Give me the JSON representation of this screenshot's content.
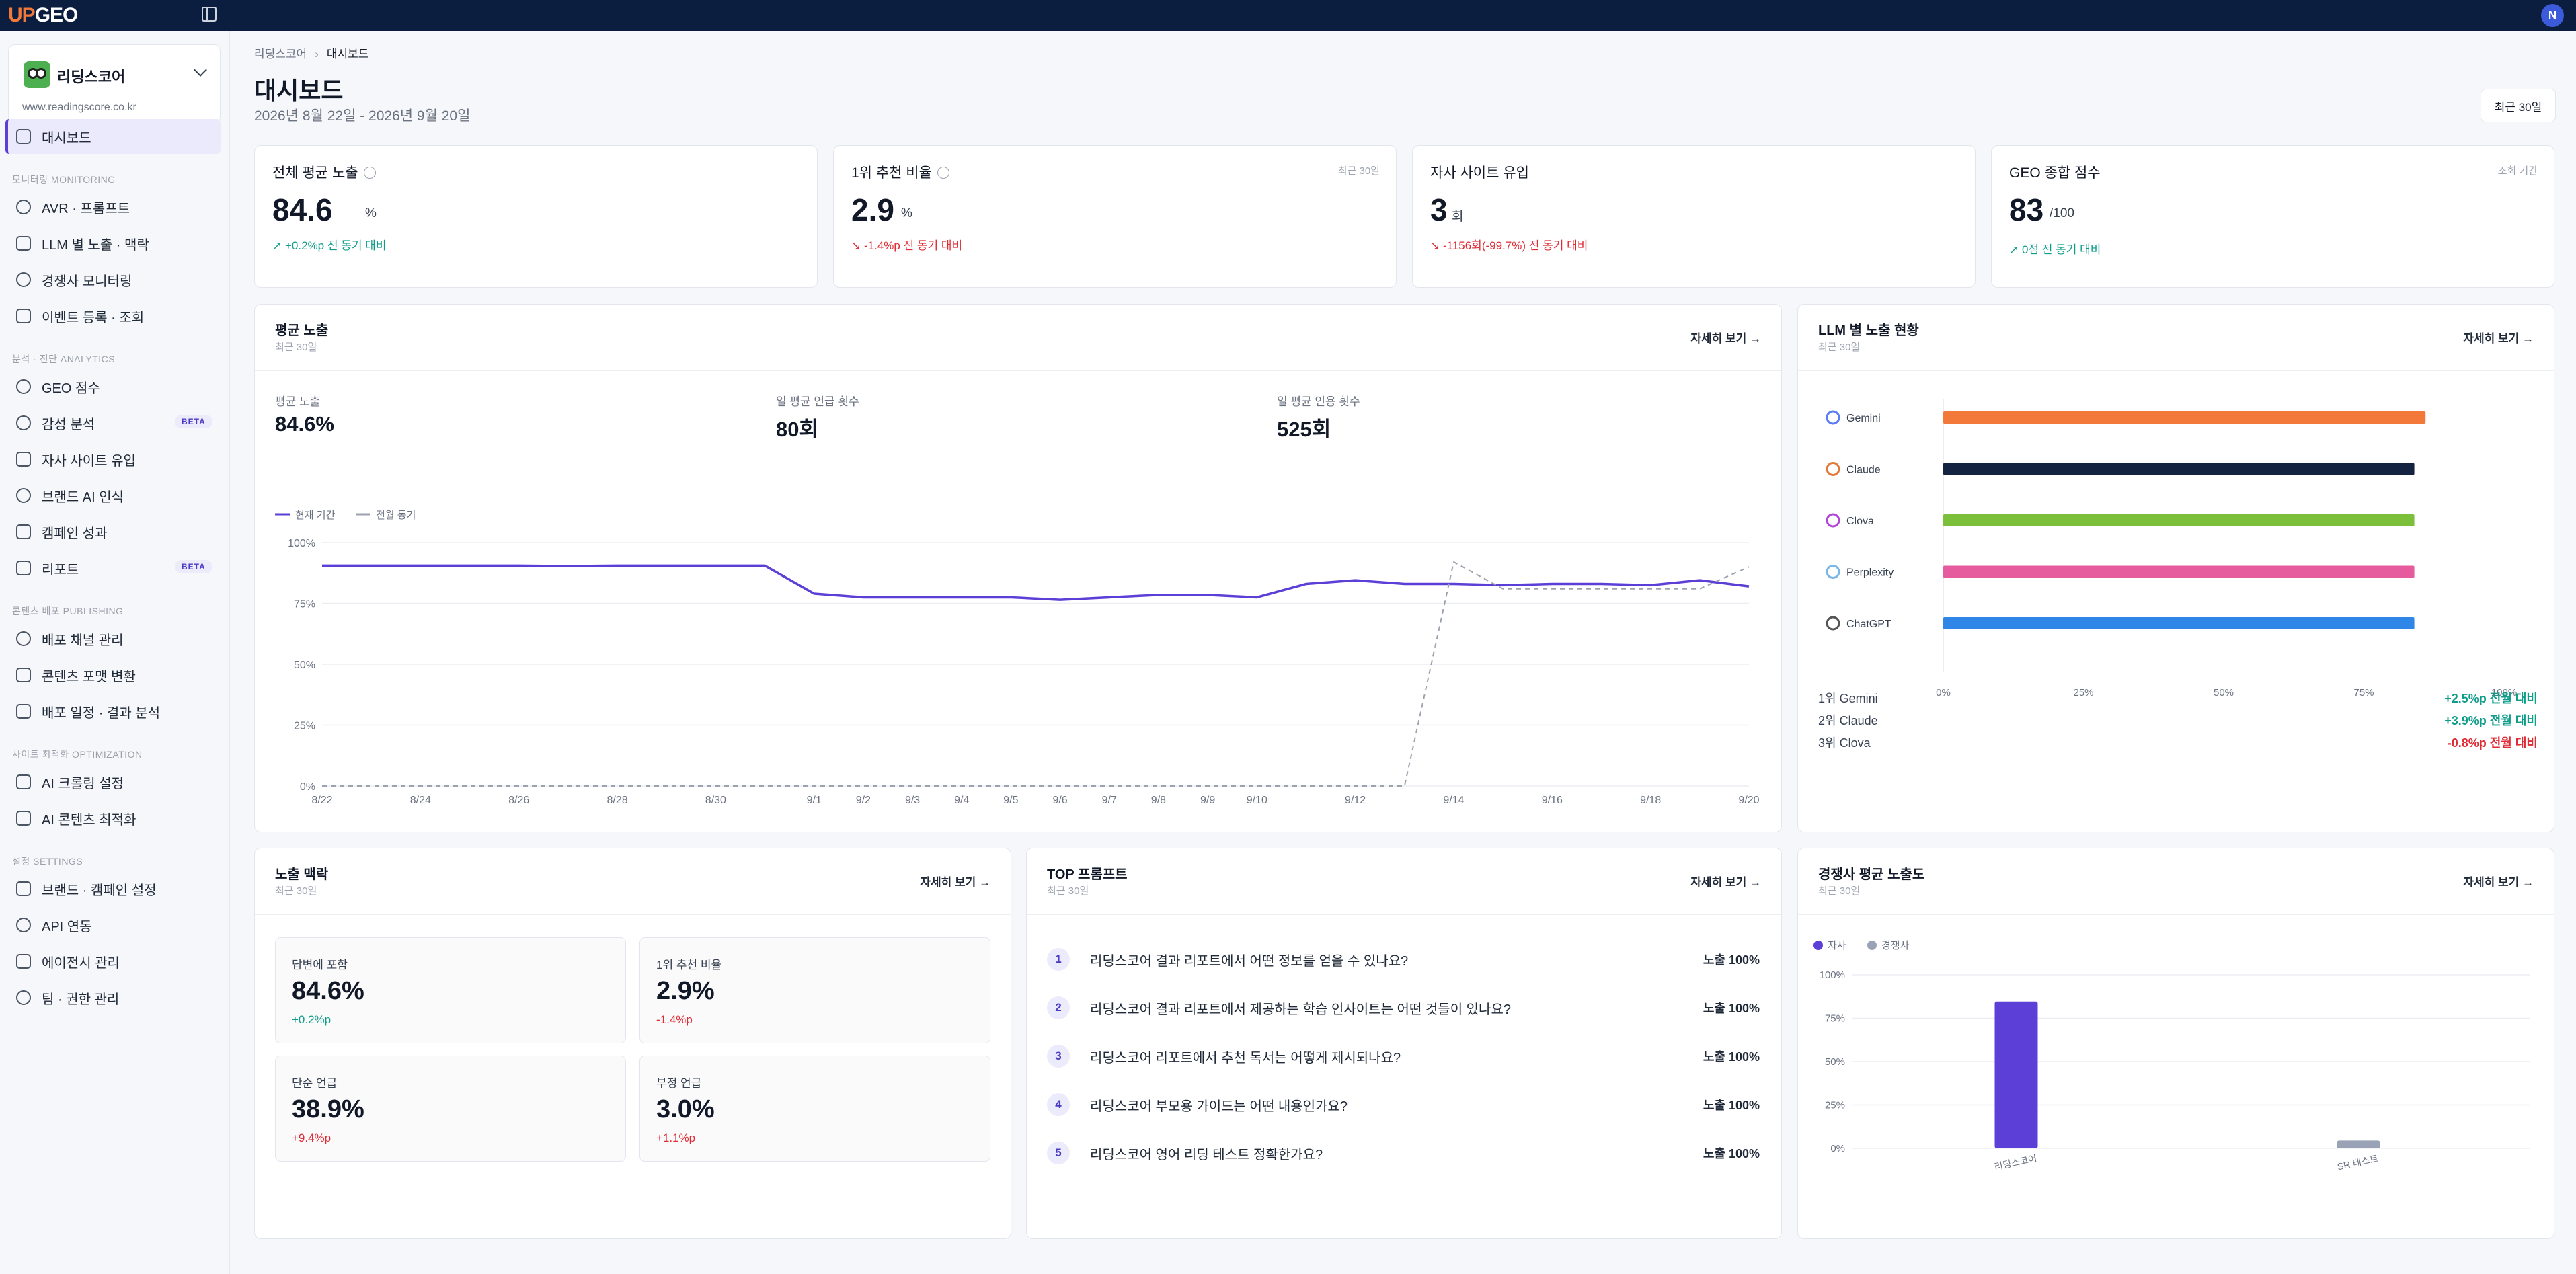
{
  "app": {
    "logo_up": "UP",
    "logo_geo": "GEO",
    "avatar": "N"
  },
  "sidebar": {
    "site_name": "리딩스코어",
    "site_url": "www.readingscore.co.kr",
    "sections": {
      "monitoring": "모니터링 MONITORING",
      "analytics": "분석 · 진단 ANALYTICS",
      "publishing": "콘텐츠 배포 PUBLISHING",
      "optimization": "사이트 최적화 OPTIMIZATION",
      "settings": "설정 SETTINGS"
    },
    "items": [
      "대시보드",
      "AVR · 프롬프트",
      "LLM 별 노출 · 맥락",
      "경쟁사 모니터링",
      "이벤트 등록 · 조회",
      "GEO 점수",
      "감성 분석",
      "자사 사이트 유입",
      "브랜드 AI 인식",
      "캠페인 성과",
      "리포트",
      "배포 채널 관리",
      "콘텐츠 포맷 변환",
      "배포 일정 · 결과 분석",
      "AI 크롤링 설정",
      "AI 콘텐츠 최적화",
      "브랜드 · 캠페인 설정",
      "API 연동",
      "에이전시 관리",
      "팀 · 권한 관리"
    ],
    "badge": "BETA"
  },
  "header": {
    "crumb_root": "리딩스코어",
    "crumb_current": "대시보드",
    "title": "대시보드",
    "daterange": "2026년 8월 22일 - 2026년 9월 20일",
    "period": "최근 30일"
  },
  "kpis": [
    {
      "label": "전체 평균 노출",
      "sub": "",
      "value": "84.6",
      "unit": "%",
      "change": "↗ +0.2%p 전 동기 대비",
      "dir": "up"
    },
    {
      "label": "1위 추천 비율",
      "sub": "최근 30일",
      "value": "2.9",
      "unit": "%",
      "change": "↘ -1.4%p 전 동기 대비",
      "dir": "down"
    },
    {
      "label": "자사 사이트 유입",
      "sub": "",
      "value": "3",
      "unit": "회",
      "change": "↘ -1156회(-99.7%) 전 동기 대비",
      "dir": "down"
    },
    {
      "label": "GEO 종합 점수",
      "sub": "조회 기간",
      "value": "83",
      "unit": "/100",
      "change": "↗ 0점 전 동기 대비",
      "dir": "up"
    }
  ],
  "exposure": {
    "title": "평균 노출",
    "sub": "최근 30일",
    "more": "자세히 보기 →",
    "metrics": [
      {
        "label": "평균 노출",
        "value": "84.6%"
      },
      {
        "label": "일 평균 언급 횟수",
        "value": "80회"
      },
      {
        "label": "일 평균 인용 횟수",
        "value": "525회"
      }
    ]
  },
  "llm": {
    "title": "LLM 별 노출 현황",
    "sub": "최근 30일",
    "more": "자세히 보기 →",
    "ranks": [
      {
        "label": "1위 Gemini",
        "change": "+2.5%p 전월 대비",
        "dir": "up"
      },
      {
        "label": "2위 Claude",
        "change": "+3.9%p 전월 대비",
        "dir": "up"
      },
      {
        "label": "3위 Clova",
        "change": "-0.8%p 전월 대비",
        "dir": "down"
      }
    ]
  },
  "context": {
    "title": "노출 맥락",
    "sub": "최근 30일",
    "more": "자세히 보기 →",
    "cells": [
      {
        "label": "답변에 포함",
        "value": "84.6%",
        "change": "+0.2%p",
        "dir": "up"
      },
      {
        "label": "1위 추천 비율",
        "value": "2.9%",
        "change": "-1.4%p",
        "dir": "down"
      },
      {
        "label": "단순 언급",
        "value": "38.9%",
        "change": "+9.4%p",
        "dir": "down"
      },
      {
        "label": "부정 언급",
        "value": "3.0%",
        "change": "+1.1%p",
        "dir": "down"
      }
    ]
  },
  "prompts": {
    "title": "TOP 프롬프트",
    "sub": "최근 30일",
    "more": "자세히 보기 →",
    "items": [
      {
        "n": "1",
        "q": "리딩스코어 결과 리포트에서 어떤 정보를 얻을 수 있나요?",
        "e": "노출 100%"
      },
      {
        "n": "2",
        "q": "리딩스코어 결과 리포트에서 제공하는 학습 인사이트는 어떤 것들이 있나요?",
        "e": "노출 100%"
      },
      {
        "n": "3",
        "q": "리딩스코어 리포트에서 추천 독서는 어떻게 제시되나요?",
        "e": "노출 100%"
      },
      {
        "n": "4",
        "q": "리딩스코어 부모용 가이드는 어떤 내용인가요?",
        "e": "노출 100%"
      },
      {
        "n": "5",
        "q": "리딩스코어 영어 리딩 테스트 정확한가요?",
        "e": "노출 100%"
      }
    ]
  },
  "competitor": {
    "title": "경쟁사 평균 노출도",
    "sub": "최근 30일",
    "more": "자세히 보기 →"
  },
  "chart_data": [
    {
      "type": "line",
      "legend": [
        "현재 기간",
        "전월 동기"
      ],
      "x": [
        "8/22",
        "8/23",
        "8/24",
        "8/25",
        "8/26",
        "8/27",
        "8/28",
        "8/29",
        "8/30",
        "8/31",
        "9/1",
        "9/2",
        "9/3",
        "9/4",
        "9/5",
        "9/6",
        "9/7",
        "9/8",
        "9/9",
        "9/10",
        "9/11",
        "9/12",
        "9/13",
        "9/14",
        "9/15",
        "9/16",
        "9/17",
        "9/18",
        "9/19",
        "9/20"
      ],
      "xticks": [
        "8/22",
        "8/24",
        "8/26",
        "8/28",
        "8/30",
        "9/1",
        "9/2",
        "9/3",
        "9/4",
        "9/5",
        "9/6",
        "9/7",
        "9/8",
        "9/9",
        "9/10",
        "9/12",
        "9/14",
        "9/16",
        "9/18",
        "9/20"
      ],
      "yticks": [
        "0%",
        "25%",
        "50%",
        "75%",
        "100%"
      ],
      "ylim": [
        0,
        100
      ],
      "series": [
        {
          "name": "현재 기간",
          "color": "#5b3fd6",
          "values": [
            90.5,
            90.5,
            90.5,
            90.5,
            90.5,
            90.3,
            90.5,
            90.5,
            90.5,
            90.5,
            79,
            77.5,
            77.5,
            77.5,
            77.5,
            76.5,
            77.5,
            78.5,
            78.5,
            77.5,
            83,
            84.5,
            83,
            83,
            82.5,
            83,
            83,
            82.5,
            84.5,
            82
          ]
        },
        {
          "name": "전월 동기",
          "color": "#9ca3af",
          "values": [
            0,
            0,
            0,
            0,
            0,
            0,
            0,
            0,
            0,
            0,
            0,
            0,
            0,
            0,
            0,
            0,
            0,
            0,
            0,
            0,
            0,
            0,
            0,
            92,
            81,
            81,
            81,
            81,
            81,
            90
          ]
        }
      ]
    },
    {
      "type": "bar",
      "orientation": "horizontal",
      "categories": [
        "Gemini",
        "Claude",
        "Clova",
        "Perplexity",
        "ChatGPT"
      ],
      "values": [
        86,
        84,
        84,
        84,
        84
      ],
      "colors": [
        "#f2793a",
        "#14233f",
        "#7cbf3a",
        "#e65a9e",
        "#2f86e6"
      ],
      "xticks": [
        "0%",
        "25%",
        "50%",
        "75%",
        "100%"
      ],
      "xlim": [
        0,
        100
      ]
    },
    {
      "type": "bar",
      "legend": [
        "자사",
        "경쟁사"
      ],
      "categories": [
        "리딩스코어",
        "SR 테스트"
      ],
      "series": [
        {
          "name": "자사",
          "color": "#5b3fd6",
          "values": [
            84.6,
            0
          ]
        },
        {
          "name": "경쟁사",
          "color": "#9aa3b5",
          "values": [
            0,
            4.5
          ]
        }
      ],
      "yticks": [
        "0%",
        "25%",
        "50%",
        "75%",
        "100%"
      ],
      "ylim": [
        0,
        100
      ]
    }
  ]
}
